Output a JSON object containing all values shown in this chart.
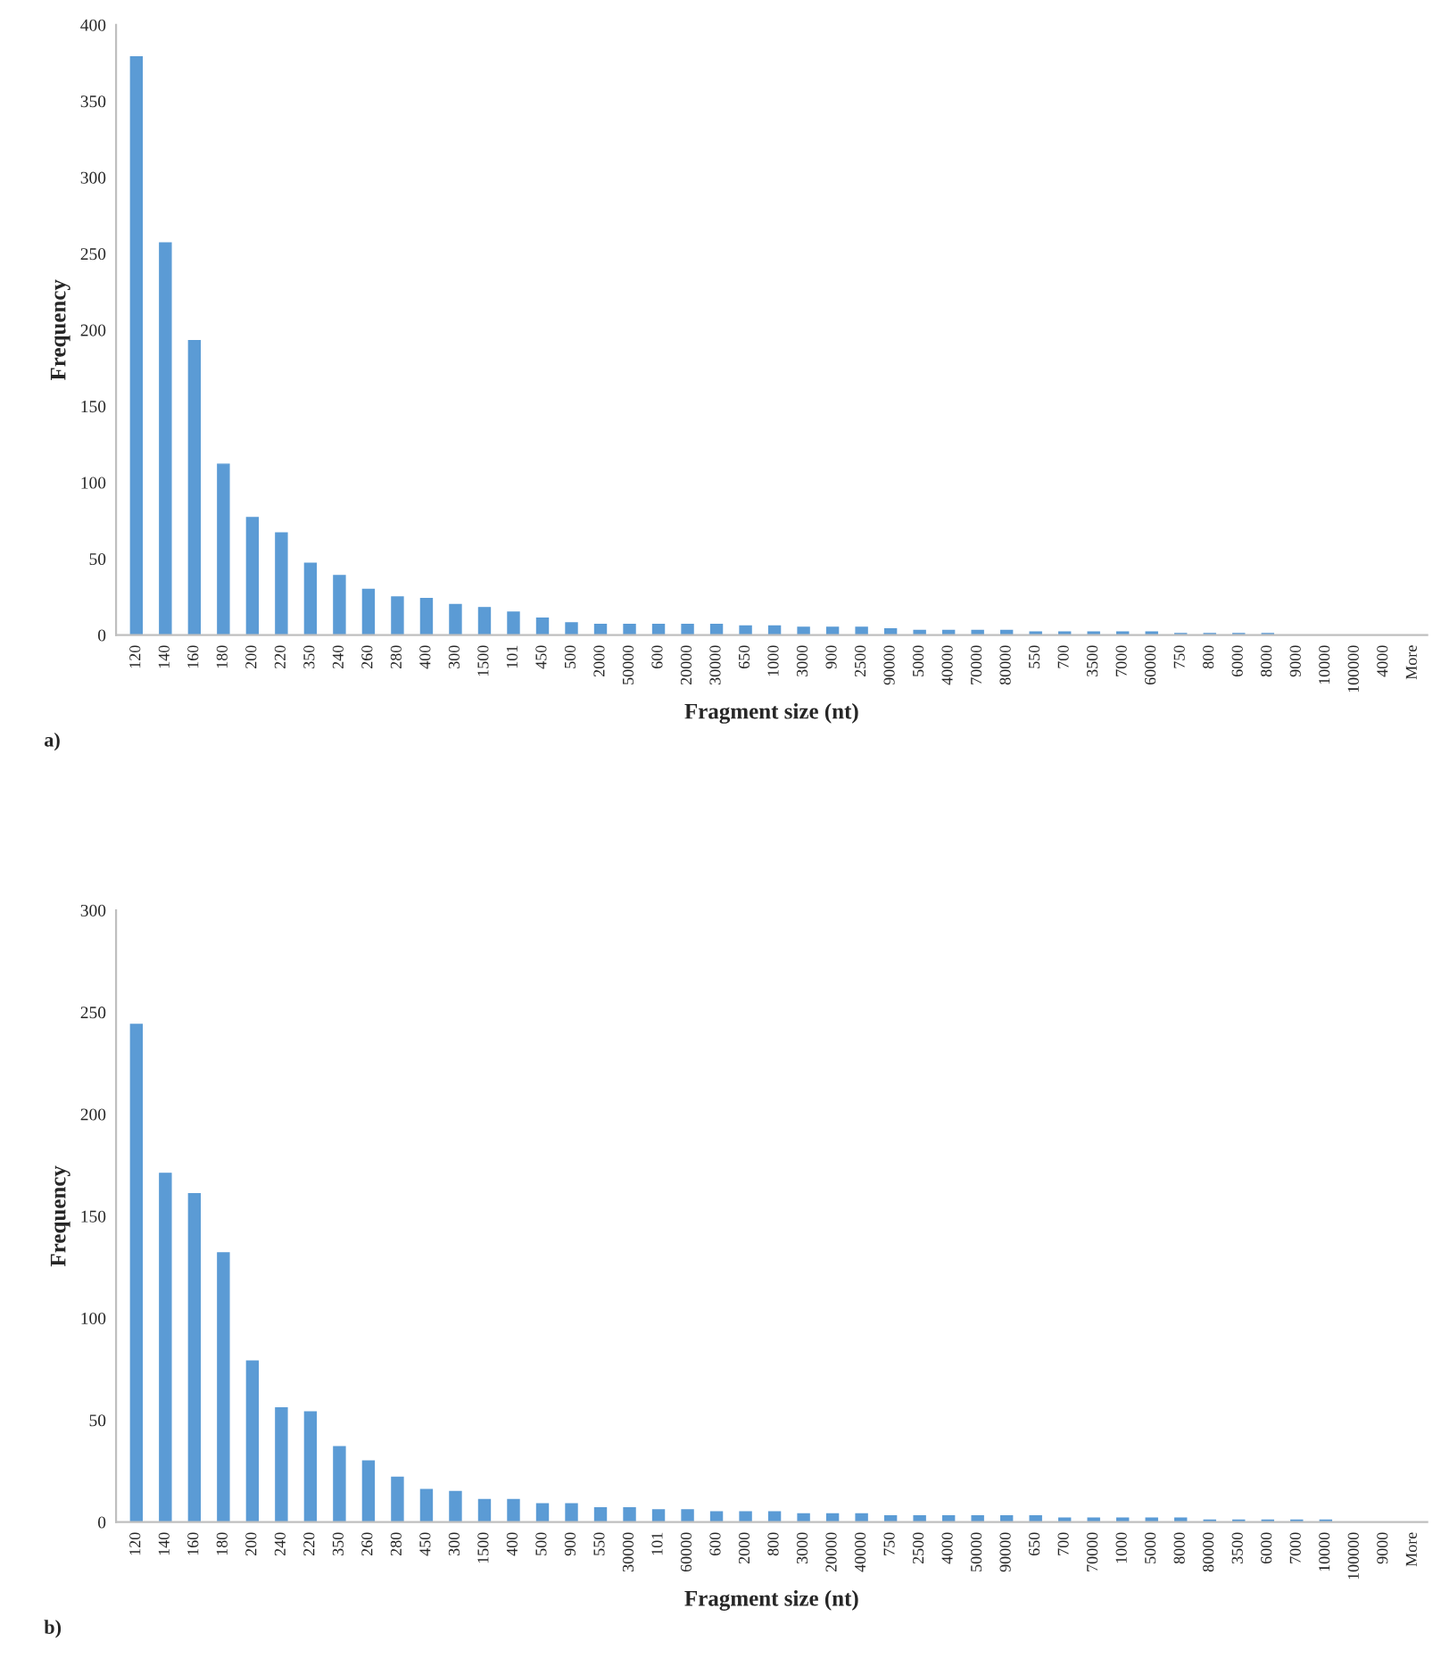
{
  "chart_data": [
    {
      "type": "bar",
      "xlabel": "Fragment size (nt)",
      "ylabel": "Frequency",
      "annotations": [
        "a)"
      ],
      "color": "#5b9bd5",
      "ylim": [
        0,
        400
      ],
      "yticks": [
        0,
        50,
        100,
        150,
        200,
        250,
        300,
        350,
        400
      ],
      "grid": false,
      "categories": [
        "120",
        "140",
        "160",
        "180",
        "200",
        "220",
        "350",
        "240",
        "260",
        "280",
        "400",
        "300",
        "1500",
        "101",
        "450",
        "500",
        "2000",
        "50000",
        "600",
        "20000",
        "30000",
        "650",
        "1000",
        "3000",
        "900",
        "2500",
        "90000",
        "5000",
        "40000",
        "70000",
        "80000",
        "550",
        "700",
        "3500",
        "7000",
        "60000",
        "750",
        "800",
        "6000",
        "8000",
        "9000",
        "10000",
        "100000",
        "4000",
        "More"
      ],
      "values": [
        379,
        257,
        193,
        112,
        77,
        67,
        47,
        39,
        30,
        25,
        24,
        20,
        18,
        15,
        11,
        8,
        7,
        7,
        7,
        7,
        7,
        6,
        6,
        5,
        5,
        5,
        4,
        3,
        3,
        3,
        3,
        2,
        2,
        2,
        2,
        2,
        1,
        1,
        1,
        1,
        0,
        0,
        0,
        0,
        0
      ]
    },
    {
      "type": "bar",
      "xlabel": "Fragment size (nt)",
      "ylabel": "Frequency",
      "annotations": [
        "b)"
      ],
      "color": "#5b9bd5",
      "ylim": [
        0,
        300
      ],
      "yticks": [
        0,
        50,
        100,
        150,
        200,
        250,
        300
      ],
      "grid": false,
      "categories": [
        "120",
        "140",
        "160",
        "180",
        "200",
        "240",
        "220",
        "350",
        "260",
        "280",
        "450",
        "300",
        "1500",
        "400",
        "500",
        "900",
        "550",
        "30000",
        "101",
        "60000",
        "600",
        "2000",
        "800",
        "3000",
        "20000",
        "40000",
        "750",
        "2500",
        "4000",
        "50000",
        "90000",
        "650",
        "700",
        "70000",
        "1000",
        "5000",
        "8000",
        "80000",
        "3500",
        "6000",
        "7000",
        "10000",
        "100000",
        "9000",
        "More"
      ],
      "values": [
        244,
        171,
        161,
        132,
        79,
        56,
        54,
        37,
        30,
        22,
        16,
        15,
        11,
        11,
        9,
        9,
        7,
        7,
        6,
        6,
        5,
        5,
        5,
        4,
        4,
        4,
        3,
        3,
        3,
        3,
        3,
        3,
        2,
        2,
        2,
        2,
        2,
        1,
        1,
        1,
        1,
        1,
        0,
        0,
        0
      ]
    }
  ]
}
